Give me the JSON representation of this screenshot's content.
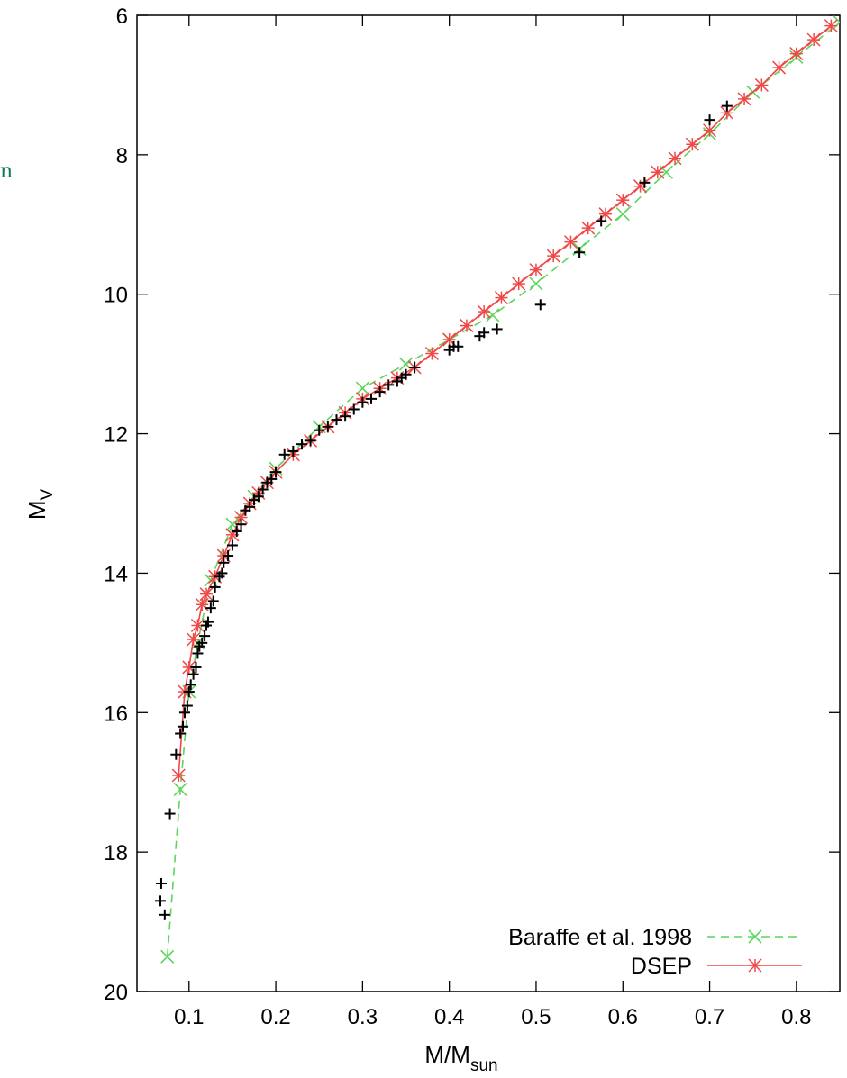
{
  "side_fragment": "n",
  "chart_data": {
    "type": "scatter",
    "xlabel": "M/M",
    "xlabel_sub": "sun",
    "ylabel": "M",
    "ylabel_sub": "V",
    "xlim": [
      0.04,
      0.85
    ],
    "ylim": [
      20,
      6
    ],
    "y_inverted": true,
    "xticks": [
      0.1,
      0.2,
      0.3,
      0.4,
      0.5,
      0.6,
      0.7,
      0.8
    ],
    "xtick_labels": [
      "0.1",
      "0.2",
      "0.3",
      "0.4",
      "0.5",
      "0.6",
      "0.7",
      "0.8"
    ],
    "yticks": [
      6,
      8,
      10,
      12,
      14,
      16,
      18,
      20
    ],
    "ytick_labels": [
      "6",
      "8",
      "10",
      "12",
      "14",
      "16",
      "18",
      "20"
    ],
    "grid": false,
    "legend_position": "bottom-right",
    "series": [
      {
        "name": "Baraffe et al. 1998",
        "style": "dashed-line-x-markers",
        "color": "#5cd65c",
        "x": [
          0.075,
          0.09,
          0.1,
          0.11,
          0.125,
          0.15,
          0.175,
          0.2,
          0.25,
          0.3,
          0.35,
          0.4,
          0.45,
          0.5,
          0.55,
          0.6,
          0.65,
          0.7,
          0.75,
          0.8,
          0.85
        ],
        "y": [
          19.5,
          17.1,
          15.7,
          15.0,
          14.1,
          13.3,
          12.9,
          12.5,
          11.9,
          11.35,
          11.0,
          10.65,
          10.3,
          9.85,
          9.35,
          8.85,
          8.25,
          7.7,
          7.1,
          6.6,
          6.1
        ]
      },
      {
        "name": "DSEP",
        "style": "solid-line-star-markers",
        "color": "#f04848",
        "x": [
          0.088,
          0.095,
          0.1,
          0.105,
          0.11,
          0.115,
          0.12,
          0.13,
          0.14,
          0.15,
          0.16,
          0.17,
          0.18,
          0.19,
          0.2,
          0.22,
          0.24,
          0.26,
          0.28,
          0.3,
          0.32,
          0.34,
          0.36,
          0.38,
          0.4,
          0.42,
          0.44,
          0.46,
          0.48,
          0.5,
          0.52,
          0.54,
          0.56,
          0.58,
          0.6,
          0.62,
          0.64,
          0.66,
          0.68,
          0.7,
          0.72,
          0.74,
          0.76,
          0.78,
          0.8,
          0.82,
          0.84
        ],
        "y": [
          16.9,
          15.7,
          15.35,
          14.95,
          14.75,
          14.45,
          14.3,
          14.05,
          13.75,
          13.45,
          13.2,
          13.0,
          12.85,
          12.7,
          12.55,
          12.3,
          12.1,
          11.9,
          11.7,
          11.5,
          11.35,
          11.2,
          11.05,
          10.85,
          10.65,
          10.45,
          10.25,
          10.05,
          9.85,
          9.65,
          9.45,
          9.25,
          9.05,
          8.85,
          8.65,
          8.45,
          8.25,
          8.05,
          7.85,
          7.65,
          7.4,
          7.2,
          7.0,
          6.75,
          6.55,
          6.35,
          6.15
        ]
      },
      {
        "name": "",
        "style": "plus-markers",
        "color": "#000000",
        "x": [
          0.067,
          0.068,
          0.072,
          0.078,
          0.085,
          0.09,
          0.093,
          0.095,
          0.098,
          0.1,
          0.102,
          0.105,
          0.108,
          0.11,
          0.112,
          0.115,
          0.118,
          0.12,
          0.122,
          0.125,
          0.128,
          0.13,
          0.135,
          0.138,
          0.14,
          0.145,
          0.15,
          0.155,
          0.16,
          0.165,
          0.17,
          0.175,
          0.18,
          0.185,
          0.19,
          0.195,
          0.2,
          0.21,
          0.22,
          0.23,
          0.24,
          0.25,
          0.26,
          0.27,
          0.28,
          0.29,
          0.3,
          0.31,
          0.32,
          0.33,
          0.34,
          0.345,
          0.35,
          0.36,
          0.4,
          0.405,
          0.41,
          0.435,
          0.44,
          0.455,
          0.505,
          0.55,
          0.575,
          0.625,
          0.7,
          0.72
        ],
        "y": [
          18.7,
          18.45,
          18.9,
          17.45,
          16.6,
          16.3,
          16.2,
          16.0,
          15.9,
          15.7,
          15.6,
          15.45,
          15.35,
          15.15,
          15.05,
          15.0,
          14.9,
          14.75,
          14.7,
          14.5,
          14.4,
          14.2,
          14.05,
          14.0,
          13.85,
          13.75,
          13.6,
          13.4,
          13.3,
          13.1,
          13.05,
          12.95,
          12.9,
          12.8,
          12.7,
          12.65,
          12.55,
          12.3,
          12.25,
          12.15,
          12.1,
          11.95,
          11.9,
          11.8,
          11.75,
          11.65,
          11.55,
          11.5,
          11.4,
          11.3,
          11.25,
          11.2,
          11.15,
          11.05,
          10.8,
          10.75,
          10.75,
          10.6,
          10.55,
          10.5,
          10.15,
          9.4,
          8.95,
          8.4,
          7.5,
          7.3
        ]
      }
    ]
  }
}
